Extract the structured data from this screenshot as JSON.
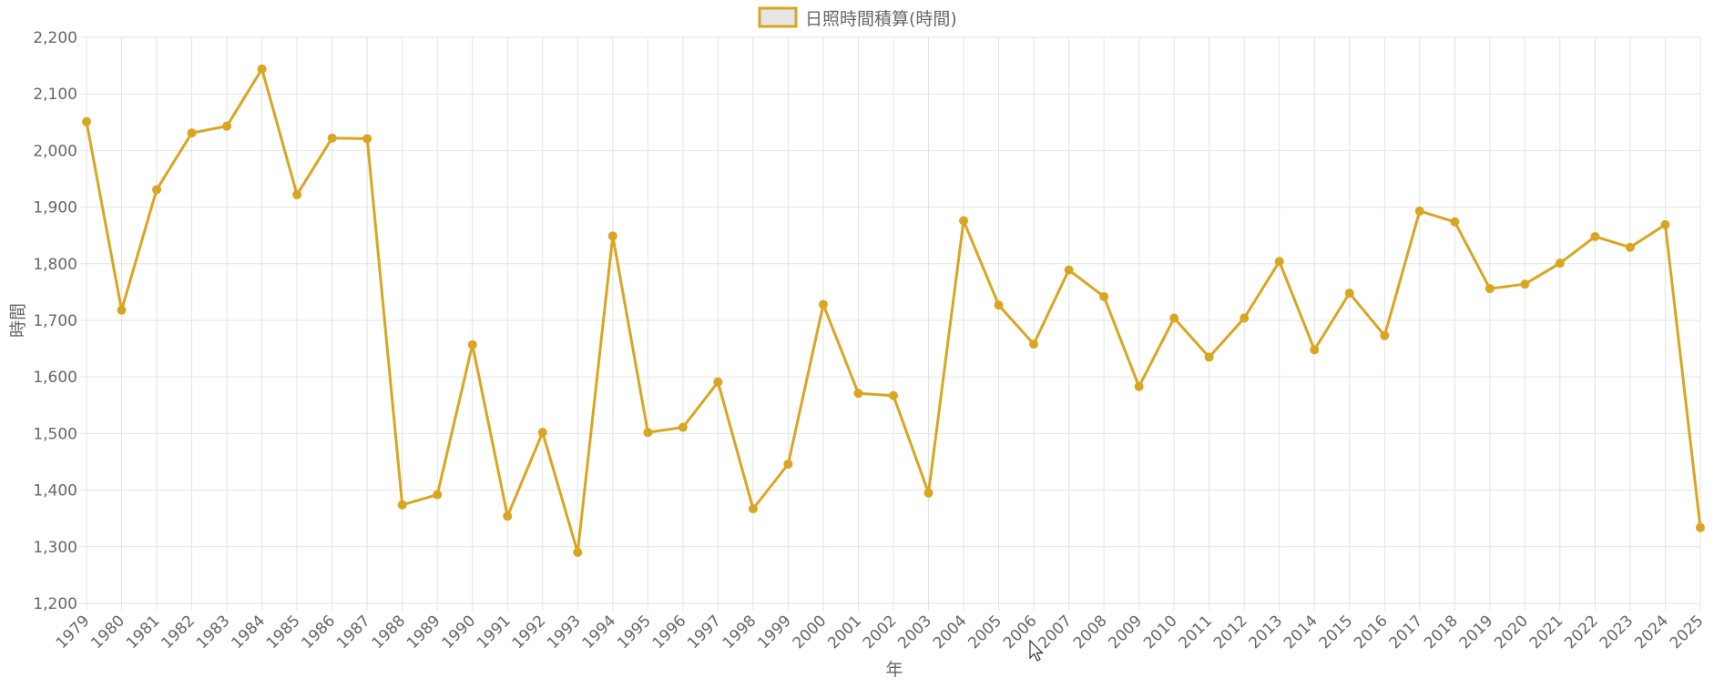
{
  "chart_data": {
    "type": "line",
    "legend": {
      "label": "日照時間積算(時間)",
      "position": "top-center"
    },
    "xlabel": "年",
    "ylabel": "時間",
    "ylim": [
      1200,
      2200
    ],
    "y_ticks": [
      "1,200",
      "1,300",
      "1,400",
      "1,500",
      "1,600",
      "1,700",
      "1,800",
      "1,900",
      "2,000",
      "2,100",
      "2,200"
    ],
    "grid": true,
    "x": [
      "1979",
      "1980",
      "1981",
      "1982",
      "1983",
      "1984",
      "1985",
      "1986",
      "1987",
      "1988",
      "1989",
      "1990",
      "1991",
      "1992",
      "1993",
      "1994",
      "1995",
      "1996",
      "1997",
      "1998",
      "1999",
      "2000",
      "2001",
      "2002",
      "2003",
      "2004",
      "2005",
      "2006",
      "2007",
      "2008",
      "2009",
      "2010",
      "2011",
      "2012",
      "2013",
      "2014",
      "2015",
      "2016",
      "2017",
      "2018",
      "2019",
      "2020",
      "2021",
      "2022",
      "2023",
      "2024",
      "2025"
    ],
    "series": [
      {
        "name": "日照時間積算(時間)",
        "color": "#DAA520",
        "fill": "#E6E6E6",
        "values": [
          2051,
          1718,
          1931,
          2031,
          2043,
          2144,
          1922,
          2022,
          2021,
          1374,
          1392,
          1657,
          1354,
          1502,
          1290,
          1849,
          1502,
          1511,
          1591,
          1367,
          1446,
          1728,
          1571,
          1567,
          1395,
          1876,
          1727,
          1658,
          1789,
          1742,
          1583,
          1704,
          1635,
          1704,
          1804,
          1648,
          1748,
          1673,
          1893,
          1874,
          1756,
          1764,
          1801,
          1848,
          1829,
          1869,
          1334
        ]
      }
    ]
  }
}
